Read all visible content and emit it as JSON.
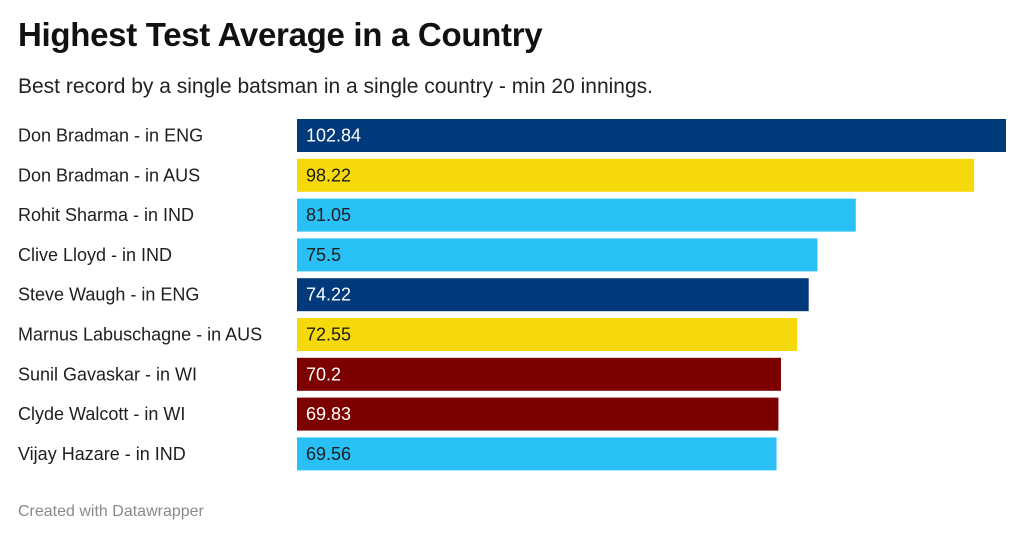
{
  "header": {
    "title": "Highest Test Average in a Country",
    "subtitle": "Best record by a single batsman in a single country - min 20 innings."
  },
  "footer": {
    "credit": "Created with Datawrapper"
  },
  "chart_data": {
    "type": "bar",
    "orientation": "horizontal",
    "title": "Highest Test Average in a Country",
    "subtitle": "Best record by a single batsman in a single country - min 20 innings.",
    "categories": [
      "Don Bradman - in ENG",
      "Don Bradman - in AUS",
      "Rohit Sharma - in IND",
      "Clive Lloyd - in IND",
      "Steve Waugh - in ENG",
      "Marnus Labuschagne - in AUS",
      "Sunil Gavaskar - in WI",
      "Clyde Walcott - in WI",
      "Vijay Hazare - in IND"
    ],
    "values": [
      102.84,
      98.22,
      81.05,
      75.5,
      74.22,
      72.55,
      70.2,
      69.83,
      69.56
    ],
    "value_labels": [
      "102.84",
      "98.22",
      "81.05",
      "75.5",
      "74.22",
      "72.55",
      "70.2",
      "69.83",
      "69.56"
    ],
    "bar_colors": [
      "#003a7a",
      "#f5d90a",
      "#29c0f5",
      "#29c0f5",
      "#003a7a",
      "#f5d90a",
      "#7d0000",
      "#7d0000",
      "#29c0f5"
    ],
    "label_colors": [
      "#ffffff",
      "#1f1f1f",
      "#1f1f1f",
      "#1f1f1f",
      "#ffffff",
      "#1f1f1f",
      "#ffffff",
      "#ffffff",
      "#1f1f1f"
    ],
    "xlim": [
      0,
      102.84
    ],
    "grid": false,
    "legend": "none"
  }
}
